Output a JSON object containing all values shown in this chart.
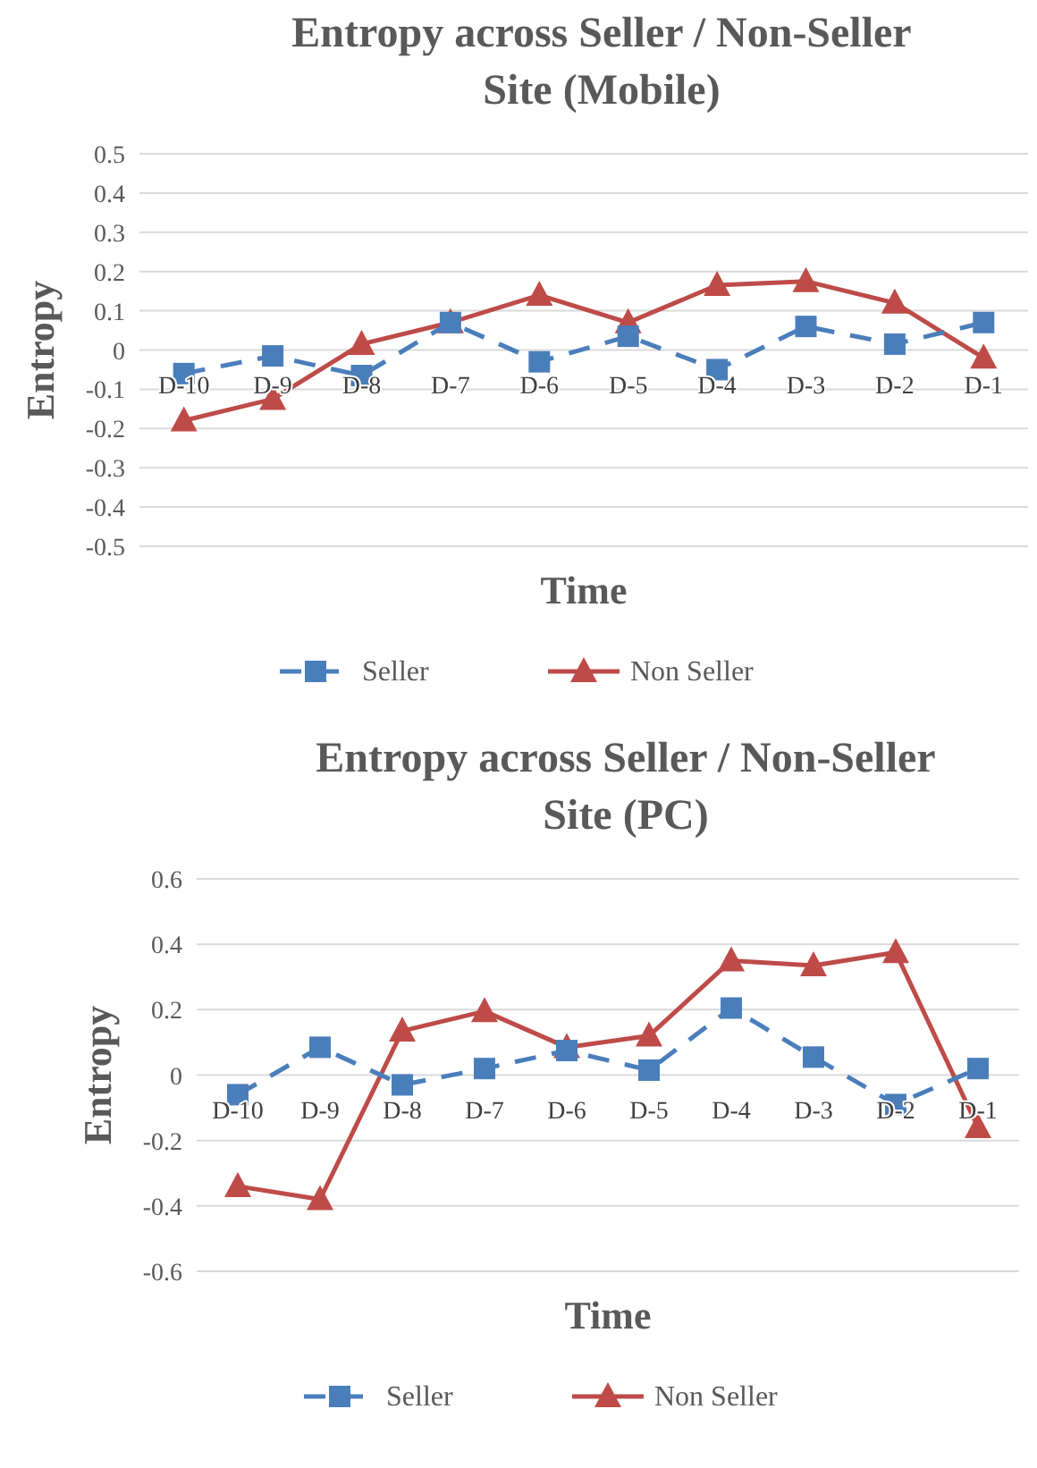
{
  "chart_data": [
    {
      "type": "line",
      "title": "Entropy across Seller / Non-Seller Site (Mobile)",
      "xlabel": "Time",
      "ylabel": "Entropy",
      "categories": [
        "D-10",
        "D-9",
        "D-8",
        "D-7",
        "D-6",
        "D-5",
        "D-4",
        "D-3",
        "D-2",
        "D-1"
      ],
      "series": [
        {
          "name": "Seller",
          "color": "#4a7ebb",
          "marker": "square",
          "line_style": "dashed",
          "values": [
            -0.06,
            -0.015,
            -0.065,
            0.07,
            -0.03,
            0.035,
            -0.05,
            0.06,
            0.015,
            0.07
          ]
        },
        {
          "name": "Non Seller",
          "color": "#be4b48",
          "marker": "triangle",
          "line_style": "solid",
          "values": [
            -0.18,
            -0.125,
            0.015,
            0.07,
            0.14,
            0.07,
            0.165,
            0.175,
            0.12,
            -0.02
          ]
        }
      ],
      "ylim": [
        -0.5,
        0.5
      ],
      "yticks": [
        -0.5,
        -0.4,
        -0.3,
        -0.2,
        -0.1,
        0,
        0.1,
        0.2,
        0.3,
        0.4,
        0.5
      ],
      "grid": "y",
      "legend": "bottom"
    },
    {
      "type": "line",
      "title": "Entropy across Seller / Non-Seller Site (PC)",
      "xlabel": "Time",
      "ylabel": "Entropy",
      "categories": [
        "D-10",
        "D-9",
        "D-8",
        "D-7",
        "D-6",
        "D-5",
        "D-4",
        "D-3",
        "D-2",
        "D-1"
      ],
      "series": [
        {
          "name": "Seller",
          "color": "#4a7ebb",
          "marker": "square",
          "line_style": "dashed",
          "values": [
            -0.06,
            0.085,
            -0.03,
            0.02,
            0.075,
            0.015,
            0.205,
            0.055,
            -0.09,
            0.02
          ]
        },
        {
          "name": "Non Seller",
          "color": "#be4b48",
          "marker": "triangle",
          "line_style": "solid",
          "values": [
            -0.34,
            -0.38,
            0.135,
            0.195,
            0.085,
            0.12,
            0.35,
            0.335,
            0.375,
            -0.16
          ]
        }
      ],
      "ylim": [
        -0.6,
        0.6
      ],
      "yticks": [
        -0.6,
        -0.4,
        -0.2,
        0,
        0.2,
        0.4,
        0.6
      ],
      "grid": "y",
      "legend": "bottom"
    }
  ]
}
